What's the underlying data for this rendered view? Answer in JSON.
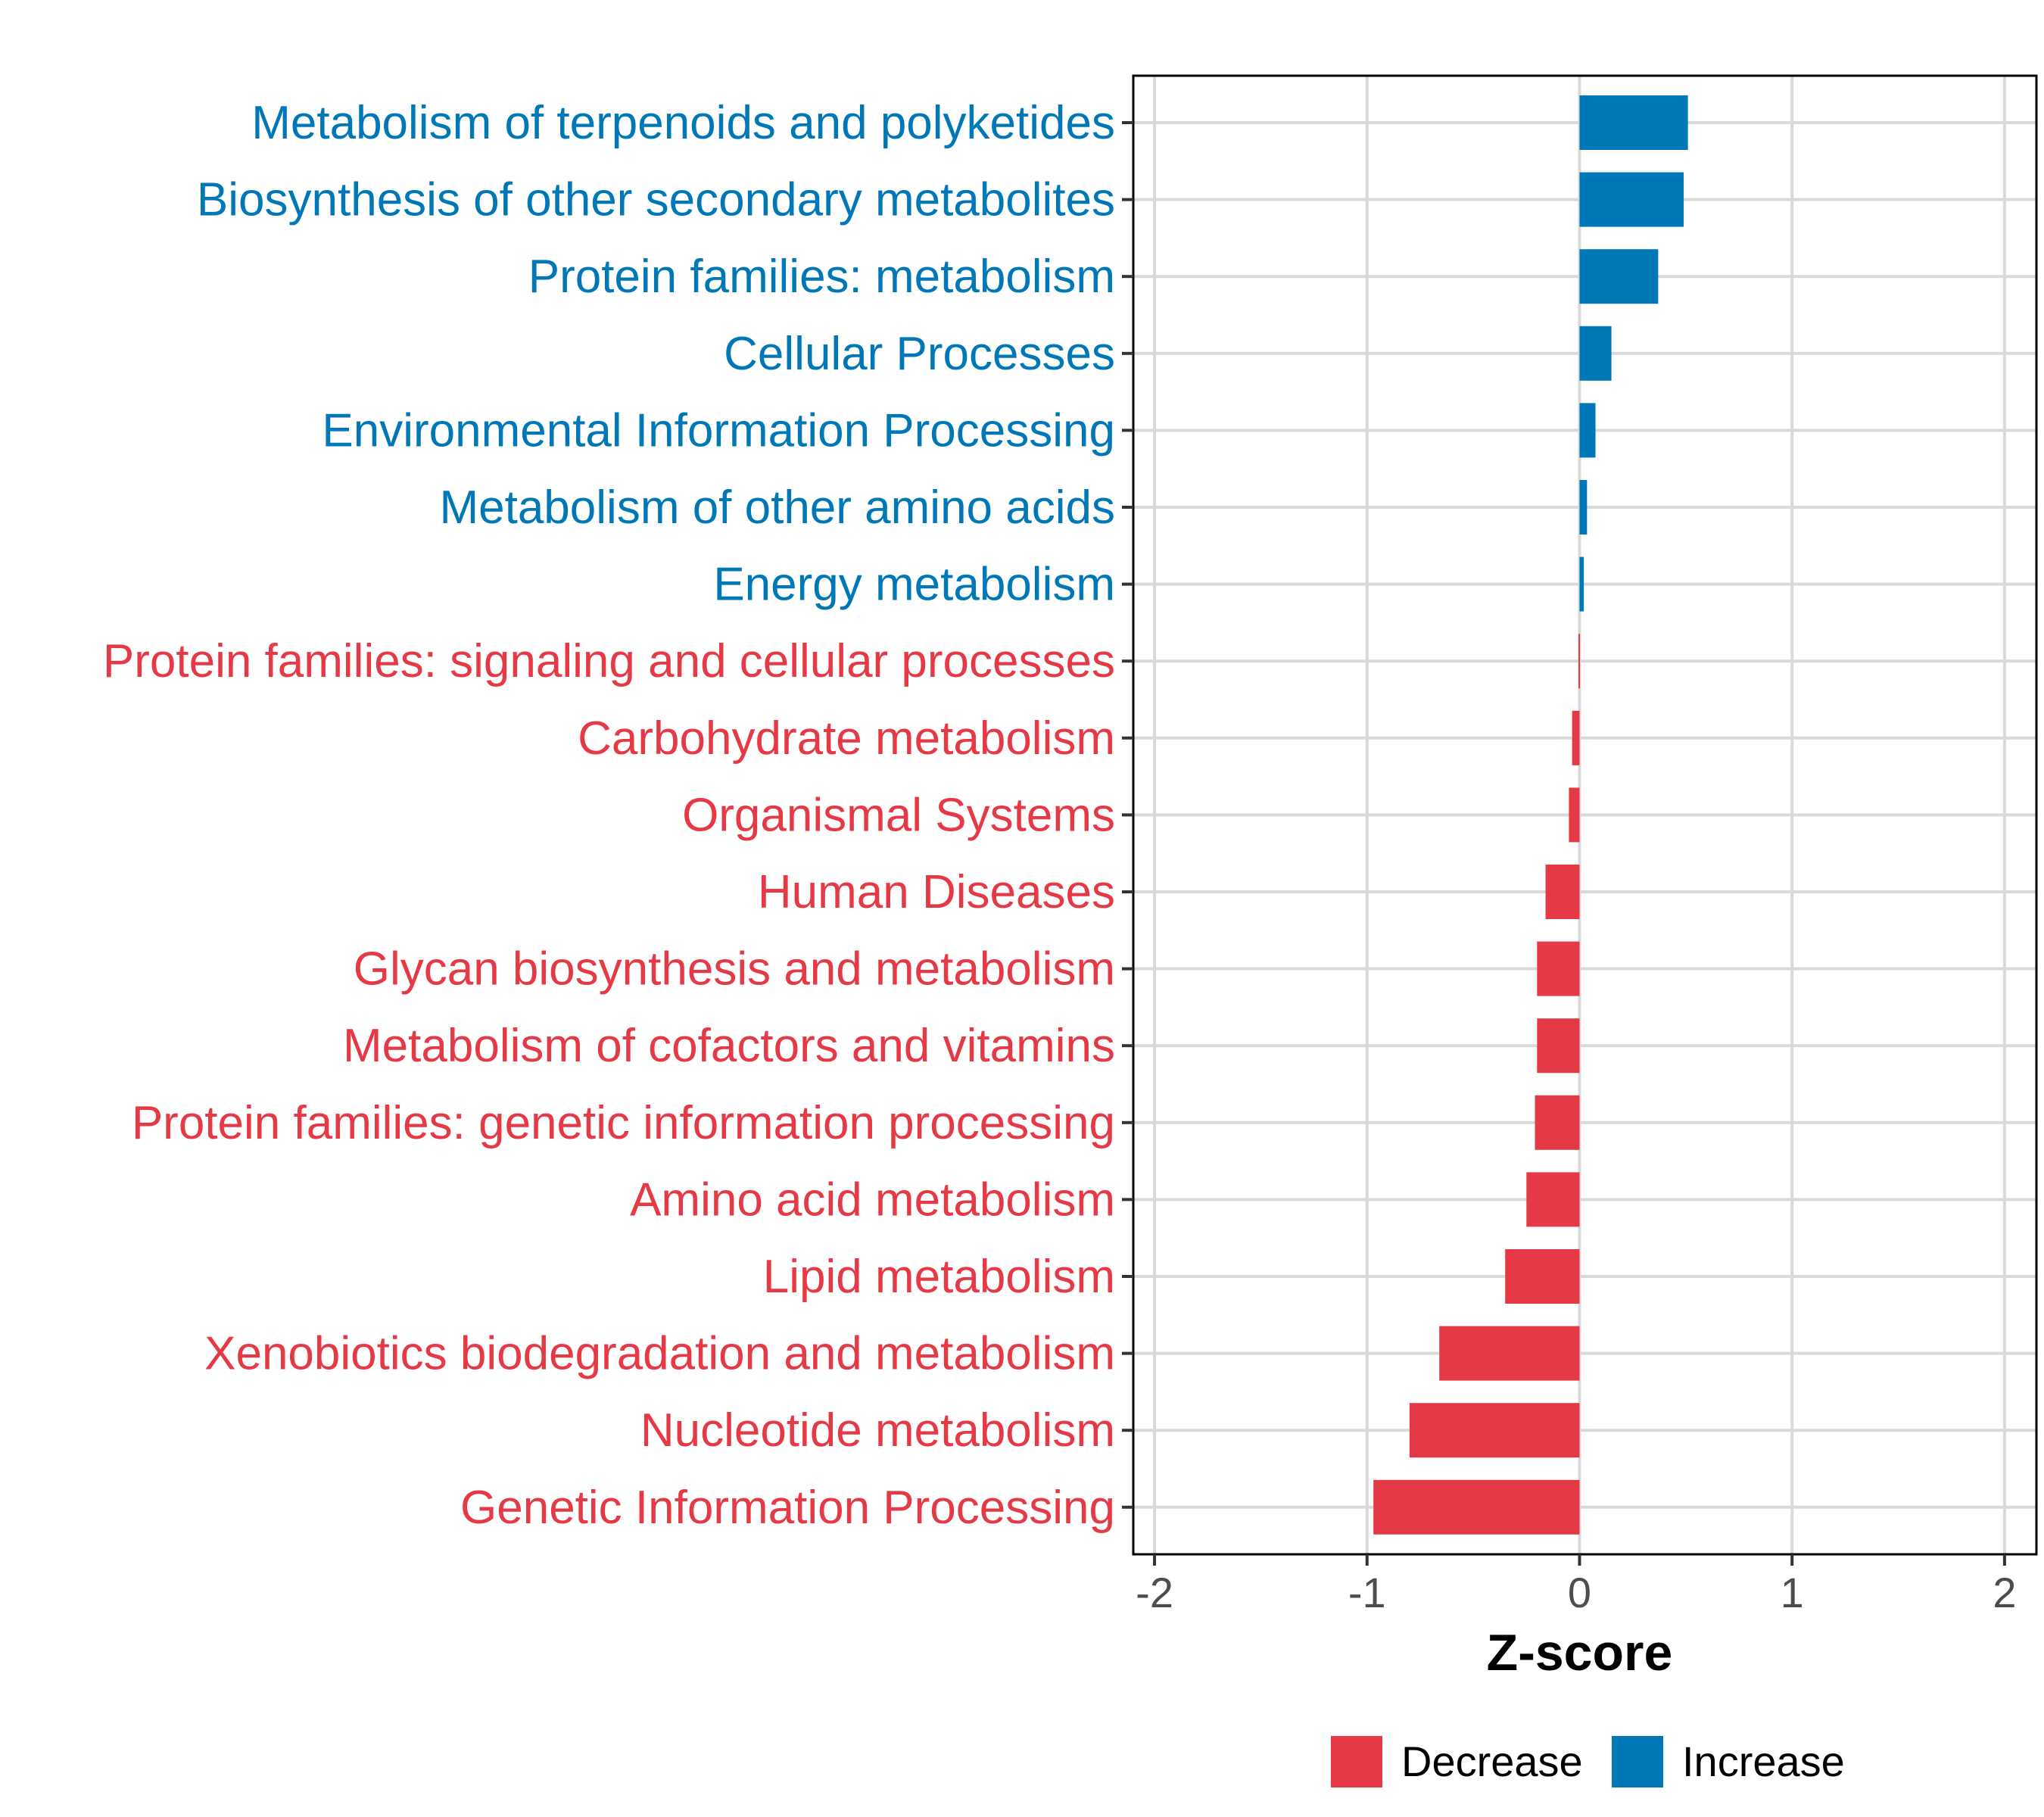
{
  "chart_data": {
    "type": "bar",
    "orientation": "horizontal",
    "xlabel": "Z-score",
    "xlim": [
      -2.1,
      2.15
    ],
    "xticks": [
      -2,
      -1,
      0,
      1,
      2
    ],
    "xtick_labels": [
      "-2",
      "-1",
      "0",
      "1",
      "2"
    ],
    "grid": true,
    "legend_position": "bottom",
    "legend": [
      {
        "name": "Decrease",
        "color": "#E63946"
      },
      {
        "name": "Increase",
        "color": "#0077B6"
      }
    ],
    "categories": [
      "Metabolism of terpenoids and polyketides",
      "Biosynthesis of other secondary metabolites",
      "Protein families: metabolism",
      "Cellular Processes",
      "Environmental Information Processing",
      "Metabolism of other amino acids",
      "Energy metabolism",
      "Protein families: signaling and cellular processes",
      "Carbohydrate metabolism",
      "Organismal Systems",
      "Human Diseases",
      "Glycan biosynthesis and metabolism",
      "Metabolism of cofactors and vitamins",
      "Protein families: genetic information processing",
      "Amino acid metabolism",
      "Lipid metabolism",
      "Xenobiotics biodegradation and metabolism",
      "Nucleotide metabolism",
      "Genetic Information Processing"
    ],
    "values": [
      0.51,
      0.49,
      0.37,
      0.15,
      0.075,
      0.035,
      0.02,
      -0.005,
      -0.035,
      -0.05,
      -0.16,
      -0.2,
      -0.2,
      -0.21,
      -0.25,
      -0.35,
      -0.66,
      -0.8,
      -0.97
    ],
    "groups": [
      "Increase",
      "Increase",
      "Increase",
      "Increase",
      "Increase",
      "Increase",
      "Increase",
      "Decrease",
      "Decrease",
      "Decrease",
      "Decrease",
      "Decrease",
      "Decrease",
      "Decrease",
      "Decrease",
      "Decrease",
      "Decrease",
      "Decrease",
      "Decrease"
    ]
  }
}
